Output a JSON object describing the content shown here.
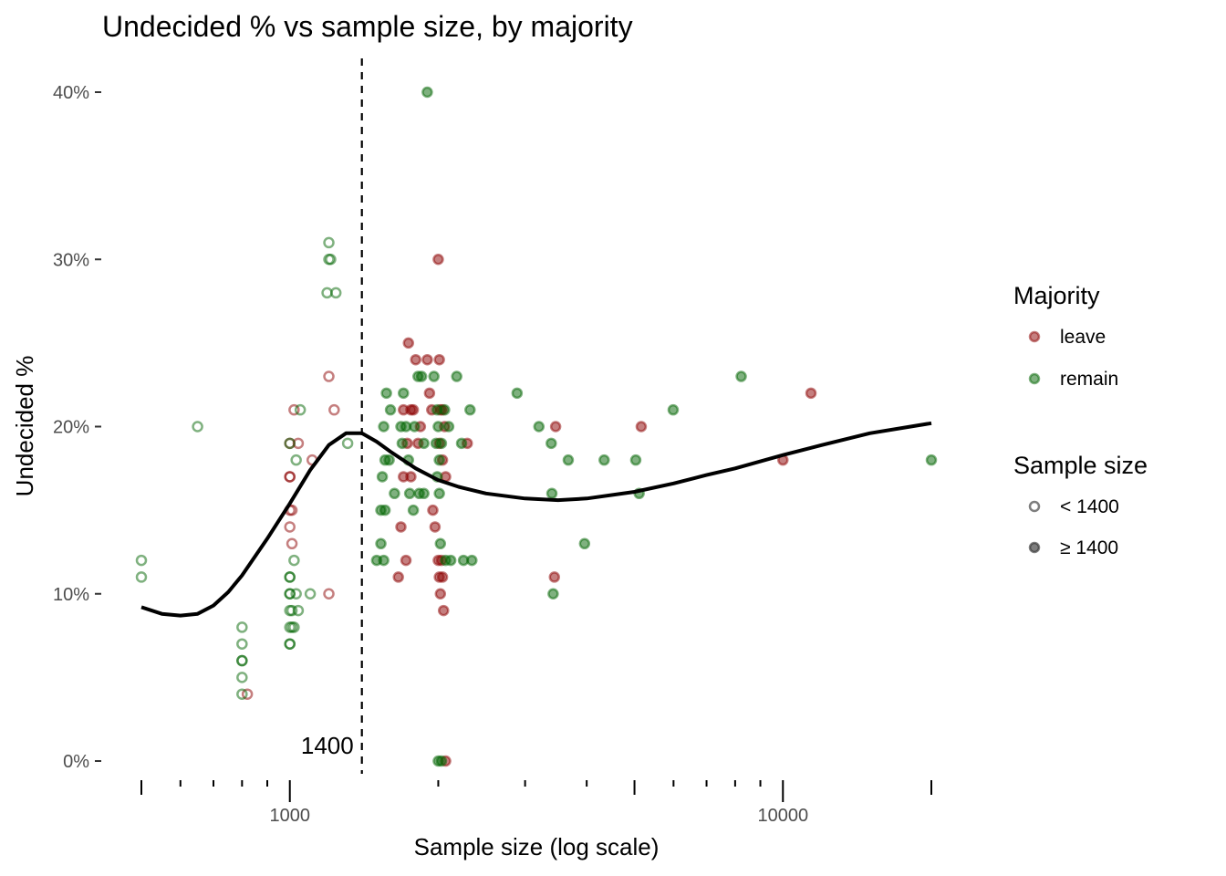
{
  "chart_data": {
    "type": "scatter",
    "title": "Undecided % vs sample size, by majority",
    "xlabel": "Sample size (log scale)",
    "ylabel": "Undecided %",
    "x_scale": "log",
    "xlim": [
      500,
      20000
    ],
    "ylim": [
      0,
      40
    ],
    "x_tick_labels": [
      "1000",
      "10000"
    ],
    "x_tick_values": [
      1000,
      10000
    ],
    "x_minor_ticks": [
      500,
      600,
      700,
      800,
      900,
      1000,
      2000,
      3000,
      4000,
      5000,
      6000,
      7000,
      8000,
      9000,
      10000,
      20000
    ],
    "y_ticks": [
      0,
      10,
      20,
      30,
      40
    ],
    "y_tick_labels": [
      "0%",
      "10%",
      "20%",
      "30%",
      "40%"
    ],
    "grid": false,
    "threshold": {
      "value": 1400,
      "label": "1400"
    },
    "colors": {
      "leave": "#8b0000",
      "remain": "#006400",
      "smooth": "#000000",
      "neutral": "#444444"
    },
    "legend": {
      "placement": "right",
      "majority": {
        "title": "Majority",
        "items": [
          "leave",
          "remain"
        ]
      },
      "sample_size": {
        "title": "Sample size",
        "items": [
          "< 1400",
          "≥ 1400"
        ]
      }
    },
    "series": [
      {
        "name": "leave",
        "points": [
          [
            1000,
            17
          ],
          [
            1000,
            17
          ],
          [
            1000,
            14
          ],
          [
            1000,
            15
          ],
          [
            1010,
            15
          ],
          [
            1000,
            19
          ],
          [
            1020,
            21
          ],
          [
            1040,
            19
          ],
          [
            1010,
            13
          ],
          [
            1110,
            18
          ],
          [
            1200,
            23
          ],
          [
            1230,
            21
          ],
          [
            1200,
            10
          ],
          [
            820,
            4
          ],
          [
            1740,
            25
          ],
          [
            1800,
            24
          ],
          [
            1700,
            21
          ],
          [
            1760,
            21
          ],
          [
            1780,
            21
          ],
          [
            1730,
            19
          ],
          [
            1820,
            19
          ],
          [
            1700,
            17
          ],
          [
            1760,
            17
          ],
          [
            1680,
            14
          ],
          [
            1720,
            12
          ],
          [
            1660,
            11
          ],
          [
            1840,
            20
          ],
          [
            1900,
            24
          ],
          [
            1920,
            22
          ],
          [
            1940,
            21
          ],
          [
            1950,
            15
          ],
          [
            1970,
            14
          ],
          [
            2000,
            30
          ],
          [
            2010,
            24
          ],
          [
            2020,
            21
          ],
          [
            2040,
            21
          ],
          [
            2060,
            20
          ],
          [
            2010,
            19
          ],
          [
            2040,
            18
          ],
          [
            2070,
            17
          ],
          [
            2000,
            12
          ],
          [
            2030,
            12
          ],
          [
            2010,
            11
          ],
          [
            2040,
            11
          ],
          [
            2020,
            10
          ],
          [
            2050,
            9
          ],
          [
            2070,
            0
          ],
          [
            2290,
            19
          ],
          [
            3460,
            20
          ],
          [
            3440,
            11
          ],
          [
            5160,
            20
          ],
          [
            10000,
            18
          ],
          [
            11400,
            22
          ]
        ]
      },
      {
        "name": "remain",
        "points": [
          [
            500,
            12
          ],
          [
            500,
            11
          ],
          [
            650,
            20
          ],
          [
            800,
            8
          ],
          [
            800,
            7
          ],
          [
            800,
            6
          ],
          [
            800,
            6
          ],
          [
            800,
            5
          ],
          [
            800,
            4
          ],
          [
            1000,
            19
          ],
          [
            1000,
            11
          ],
          [
            1000,
            11
          ],
          [
            1000,
            10
          ],
          [
            1000,
            10
          ],
          [
            1000,
            9
          ],
          [
            1010,
            9
          ],
          [
            1000,
            8
          ],
          [
            1010,
            8
          ],
          [
            1020,
            8
          ],
          [
            1000,
            7
          ],
          [
            1000,
            7
          ],
          [
            1030,
            18
          ],
          [
            1020,
            12
          ],
          [
            1030,
            10
          ],
          [
            1050,
            21
          ],
          [
            1100,
            10
          ],
          [
            1040,
            9
          ],
          [
            1200,
            31
          ],
          [
            1200,
            30
          ],
          [
            1210,
            30
          ],
          [
            1190,
            28
          ],
          [
            1240,
            28
          ],
          [
            1310,
            19
          ],
          [
            1570,
            22
          ],
          [
            1550,
            20
          ],
          [
            1560,
            18
          ],
          [
            1590,
            18
          ],
          [
            1600,
            21
          ],
          [
            1540,
            17
          ],
          [
            1530,
            15
          ],
          [
            1560,
            15
          ],
          [
            1530,
            13
          ],
          [
            1500,
            12
          ],
          [
            1550,
            12
          ],
          [
            1630,
            16
          ],
          [
            1680,
            20
          ],
          [
            1690,
            19
          ],
          [
            1700,
            22
          ],
          [
            1720,
            20
          ],
          [
            1740,
            18
          ],
          [
            1750,
            16
          ],
          [
            1780,
            15
          ],
          [
            1790,
            20
          ],
          [
            1820,
            23
          ],
          [
            1850,
            23
          ],
          [
            1830,
            16
          ],
          [
            1870,
            19
          ],
          [
            1870,
            16
          ],
          [
            1900,
            40
          ],
          [
            1960,
            23
          ],
          [
            1990,
            21
          ],
          [
            2000,
            20
          ],
          [
            1980,
            19
          ],
          [
            2010,
            18
          ],
          [
            2030,
            19
          ],
          [
            1990,
            17
          ],
          [
            2010,
            16
          ],
          [
            2020,
            13
          ],
          [
            2070,
            12
          ],
          [
            2000,
            0
          ],
          [
            2030,
            0
          ],
          [
            2060,
            21
          ],
          [
            2100,
            20
          ],
          [
            2180,
            23
          ],
          [
            2230,
            19
          ],
          [
            2120,
            12
          ],
          [
            2250,
            12
          ],
          [
            2320,
            21
          ],
          [
            2340,
            12
          ],
          [
            2890,
            22
          ],
          [
            3200,
            20
          ],
          [
            3390,
            19
          ],
          [
            3400,
            16
          ],
          [
            3420,
            10
          ],
          [
            3670,
            18
          ],
          [
            3960,
            13
          ],
          [
            4340,
            18
          ],
          [
            5030,
            18
          ],
          [
            5110,
            16
          ],
          [
            5990,
            21
          ],
          [
            8230,
            23
          ],
          [
            20000,
            18
          ]
        ]
      }
    ],
    "smooth_curve": [
      [
        500,
        9.2
      ],
      [
        550,
        8.8
      ],
      [
        600,
        8.7
      ],
      [
        650,
        8.8
      ],
      [
        700,
        9.3
      ],
      [
        750,
        10.1
      ],
      [
        800,
        11.1
      ],
      [
        900,
        13.3
      ],
      [
        1000,
        15.4
      ],
      [
        1100,
        17.4
      ],
      [
        1200,
        18.9
      ],
      [
        1300,
        19.6
      ],
      [
        1400,
        19.6
      ],
      [
        1500,
        19.1
      ],
      [
        1600,
        18.5
      ],
      [
        1800,
        17.5
      ],
      [
        2000,
        16.8
      ],
      [
        2200,
        16.4
      ],
      [
        2500,
        16.0
      ],
      [
        3000,
        15.7
      ],
      [
        3500,
        15.6
      ],
      [
        4000,
        15.7
      ],
      [
        5000,
        16.1
      ],
      [
        6000,
        16.6
      ],
      [
        7000,
        17.1
      ],
      [
        8000,
        17.5
      ],
      [
        10000,
        18.3
      ],
      [
        12000,
        18.9
      ],
      [
        15000,
        19.6
      ],
      [
        20000,
        20.2
      ]
    ]
  }
}
